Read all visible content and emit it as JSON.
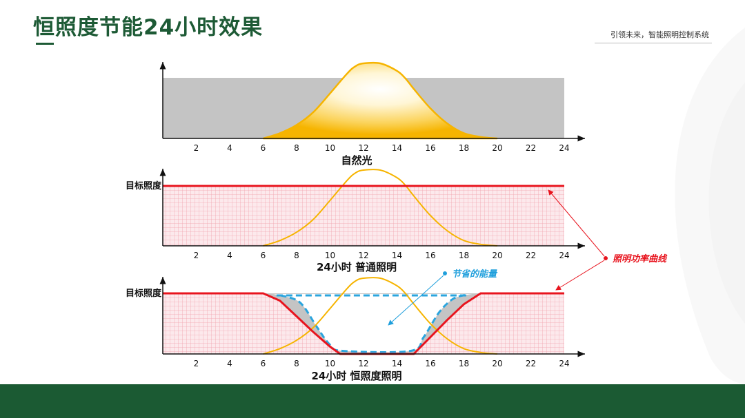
{
  "header": {
    "title": "恒照度节能24小时效果",
    "slogan": "引领未来，智能照明控制系统"
  },
  "colors": {
    "brand_green": "#1d5a35",
    "daylight_curve": "#f7b500",
    "lamp_power_line": "#e8141e",
    "grid_fill": "#fce9ec",
    "grid_line": "#f1a3ae",
    "gray_band": "#c4c4c4",
    "saving_outline": "#2ba5de",
    "annotation_red": "#e8141e",
    "annotation_blue": "#1f9fdc"
  },
  "panels": {
    "natural": {
      "caption": "自然光"
    },
    "normal": {
      "caption": "24小时 普通照明",
      "target_label": "目标照度"
    },
    "constant": {
      "caption": "24小时 恒照度照明",
      "target_label": "目标照度"
    }
  },
  "annotations": {
    "power_curve": "照明功率曲线",
    "energy_saved": "节省的能量"
  },
  "chart_data": {
    "type": "area",
    "x_ticks": [
      2,
      4,
      6,
      8,
      10,
      12,
      14,
      16,
      18,
      20,
      22,
      24
    ],
    "xlim": [
      0,
      24
    ],
    "daylight_curve": {
      "x": [
        6,
        7,
        8,
        9,
        10,
        11,
        11.5,
        12,
        13,
        14,
        14.5,
        15,
        16,
        17,
        18,
        19,
        20
      ],
      "y": [
        0,
        0.07,
        0.18,
        0.35,
        0.6,
        0.86,
        0.96,
        1.0,
        1.0,
        0.9,
        0.8,
        0.66,
        0.4,
        0.2,
        0.07,
        0.02,
        0
      ]
    },
    "normal_power": {
      "x": [
        0,
        24
      ],
      "y": [
        1,
        1
      ]
    },
    "constant_power": {
      "x": [
        0,
        6,
        7,
        8,
        9,
        10,
        10.6,
        15,
        16,
        17,
        18,
        19,
        24
      ],
      "y": [
        1,
        1,
        0.88,
        0.62,
        0.36,
        0.12,
        0,
        0,
        0.28,
        0.56,
        0.82,
        1,
        1
      ]
    },
    "saved_energy_outline": {
      "x": [
        7,
        8.2,
        9.2,
        10,
        10.8,
        14.8,
        15.6,
        16.5,
        17.3,
        18
      ],
      "y": [
        0.97,
        0.85,
        0.45,
        0.15,
        0.05,
        0.05,
        0.28,
        0.68,
        0.9,
        0.97
      ]
    }
  }
}
